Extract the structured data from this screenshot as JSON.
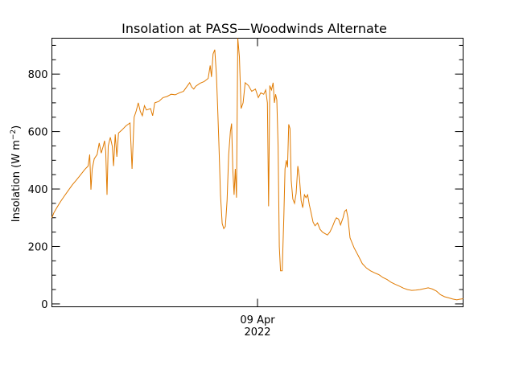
{
  "chart_data": {
    "type": "line",
    "title": "Insolation at PASS—Woodwinds Alternate",
    "ylabel_main": "Insolation (W m",
    "ylabel_sup": "−2",
    "ylabel_close": ")",
    "x_tick_line1": "09 Apr",
    "x_tick_line2": "2022",
    "x_tick_position": 0.5,
    "ylim": [
      -10,
      925
    ],
    "y_ticks": [
      0,
      200,
      400,
      600,
      800
    ],
    "grid": false,
    "line_color": "#e07a00",
    "series": [
      {
        "points": [
          [
            0.0,
            300
          ],
          [
            0.005,
            318
          ],
          [
            0.01,
            330
          ],
          [
            0.016,
            345
          ],
          [
            0.022,
            358
          ],
          [
            0.03,
            375
          ],
          [
            0.04,
            395
          ],
          [
            0.05,
            415
          ],
          [
            0.06,
            432
          ],
          [
            0.07,
            450
          ],
          [
            0.08,
            468
          ],
          [
            0.088,
            480
          ],
          [
            0.092,
            520
          ],
          [
            0.095,
            398
          ],
          [
            0.098,
            470
          ],
          [
            0.103,
            505
          ],
          [
            0.11,
            520
          ],
          [
            0.115,
            560
          ],
          [
            0.12,
            525
          ],
          [
            0.125,
            550
          ],
          [
            0.128,
            568
          ],
          [
            0.131,
            530
          ],
          [
            0.134,
            380
          ],
          [
            0.137,
            550
          ],
          [
            0.142,
            580
          ],
          [
            0.147,
            548
          ],
          [
            0.15,
            480
          ],
          [
            0.154,
            590
          ],
          [
            0.158,
            512
          ],
          [
            0.162,
            595
          ],
          [
            0.17,
            605
          ],
          [
            0.18,
            620
          ],
          [
            0.19,
            630
          ],
          [
            0.195,
            470
          ],
          [
            0.2,
            650
          ],
          [
            0.205,
            672
          ],
          [
            0.21,
            700
          ],
          [
            0.215,
            670
          ],
          [
            0.22,
            655
          ],
          [
            0.225,
            690
          ],
          [
            0.23,
            675
          ],
          [
            0.24,
            680
          ],
          [
            0.245,
            655
          ],
          [
            0.25,
            700
          ],
          [
            0.26,
            705
          ],
          [
            0.27,
            718
          ],
          [
            0.28,
            722
          ],
          [
            0.29,
            730
          ],
          [
            0.3,
            728
          ],
          [
            0.31,
            735
          ],
          [
            0.32,
            740
          ],
          [
            0.33,
            760
          ],
          [
            0.335,
            770
          ],
          [
            0.34,
            755
          ],
          [
            0.345,
            748
          ],
          [
            0.35,
            758
          ],
          [
            0.36,
            768
          ],
          [
            0.37,
            774
          ],
          [
            0.38,
            785
          ],
          [
            0.385,
            830
          ],
          [
            0.388,
            790
          ],
          [
            0.392,
            870
          ],
          [
            0.396,
            885
          ],
          [
            0.4,
            800
          ],
          [
            0.403,
            690
          ],
          [
            0.406,
            560
          ],
          [
            0.41,
            380
          ],
          [
            0.414,
            280
          ],
          [
            0.418,
            262
          ],
          [
            0.422,
            270
          ],
          [
            0.426,
            360
          ],
          [
            0.43,
            520
          ],
          [
            0.434,
            600
          ],
          [
            0.437,
            628
          ],
          [
            0.44,
            470
          ],
          [
            0.443,
            380
          ],
          [
            0.446,
            470
          ],
          [
            0.449,
            370
          ],
          [
            0.452,
            925
          ],
          [
            0.456,
            860
          ],
          [
            0.46,
            680
          ],
          [
            0.465,
            700
          ],
          [
            0.47,
            770
          ],
          [
            0.478,
            760
          ],
          [
            0.486,
            740
          ],
          [
            0.495,
            748
          ],
          [
            0.502,
            718
          ],
          [
            0.508,
            735
          ],
          [
            0.515,
            730
          ],
          [
            0.52,
            745
          ],
          [
            0.524,
            700
          ],
          [
            0.527,
            340
          ],
          [
            0.53,
            760
          ],
          [
            0.534,
            745
          ],
          [
            0.538,
            770
          ],
          [
            0.541,
            700
          ],
          [
            0.544,
            730
          ],
          [
            0.547,
            710
          ],
          [
            0.55,
            550
          ],
          [
            0.553,
            200
          ],
          [
            0.556,
            115
          ],
          [
            0.56,
            115
          ],
          [
            0.564,
            300
          ],
          [
            0.567,
            470
          ],
          [
            0.57,
            500
          ],
          [
            0.573,
            475
          ],
          [
            0.576,
            625
          ],
          [
            0.579,
            610
          ],
          [
            0.582,
            430
          ],
          [
            0.586,
            365
          ],
          [
            0.59,
            350
          ],
          [
            0.594,
            385
          ],
          [
            0.598,
            480
          ],
          [
            0.602,
            440
          ],
          [
            0.606,
            360
          ],
          [
            0.61,
            335
          ],
          [
            0.614,
            380
          ],
          [
            0.618,
            370
          ],
          [
            0.622,
            380
          ],
          [
            0.626,
            345
          ],
          [
            0.63,
            320
          ],
          [
            0.635,
            285
          ],
          [
            0.64,
            272
          ],
          [
            0.646,
            282
          ],
          [
            0.652,
            260
          ],
          [
            0.658,
            250
          ],
          [
            0.664,
            245
          ],
          [
            0.67,
            240
          ],
          [
            0.676,
            250
          ],
          [
            0.682,
            268
          ],
          [
            0.688,
            290
          ],
          [
            0.692,
            300
          ],
          [
            0.697,
            295
          ],
          [
            0.702,
            275
          ],
          [
            0.708,
            300
          ],
          [
            0.712,
            322
          ],
          [
            0.716,
            328
          ],
          [
            0.72,
            300
          ],
          [
            0.725,
            230
          ],
          [
            0.735,
            195
          ],
          [
            0.745,
            168
          ],
          [
            0.755,
            140
          ],
          [
            0.765,
            125
          ],
          [
            0.775,
            115
          ],
          [
            0.785,
            108
          ],
          [
            0.795,
            102
          ],
          [
            0.805,
            92
          ],
          [
            0.815,
            85
          ],
          [
            0.825,
            75
          ],
          [
            0.835,
            68
          ],
          [
            0.845,
            62
          ],
          [
            0.855,
            55
          ],
          [
            0.865,
            50
          ],
          [
            0.875,
            47
          ],
          [
            0.885,
            48
          ],
          [
            0.895,
            50
          ],
          [
            0.905,
            53
          ],
          [
            0.915,
            56
          ],
          [
            0.925,
            52
          ],
          [
            0.935,
            45
          ],
          [
            0.945,
            32
          ],
          [
            0.955,
            25
          ],
          [
            0.965,
            21
          ],
          [
            0.975,
            17
          ],
          [
            0.985,
            14
          ],
          [
            0.99,
            16
          ],
          [
            1.0,
            18
          ]
        ]
      }
    ]
  }
}
